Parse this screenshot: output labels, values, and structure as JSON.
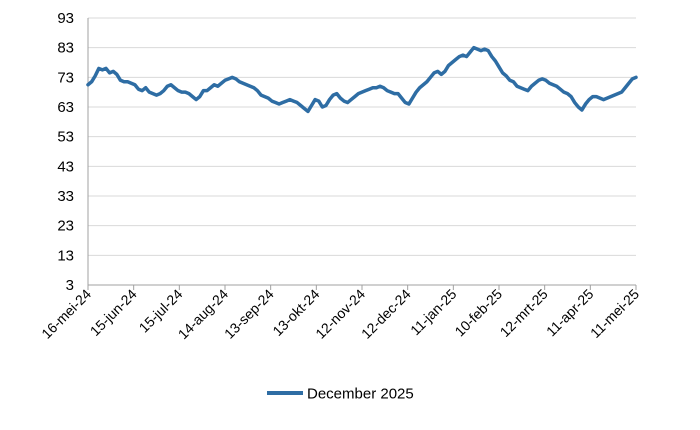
{
  "chart_data": {
    "type": "line",
    "title": "",
    "xlabel": "",
    "ylabel": "",
    "ylim": [
      3,
      93
    ],
    "y_ticks": [
      3,
      13,
      23,
      33,
      43,
      53,
      63,
      73,
      83,
      93
    ],
    "x_ticks": [
      "16-mei-24",
      "15-jun-24",
      "15-jul-24",
      "14-aug-24",
      "13-sep-24",
      "13-okt-24",
      "12-nov-24",
      "12-dec-24",
      "11-jan-25",
      "10-feb-25",
      "12-mrt-25",
      "11-apr-25",
      "11-mei-25"
    ],
    "grid": true,
    "legend_position": "bottom",
    "color": "#2e6da4",
    "series": [
      {
        "name": "December 2025",
        "values": [
          70.5,
          71.5,
          73.5,
          76.0,
          75.5,
          76.0,
          74.5,
          75.0,
          74.0,
          72.0,
          71.5,
          71.5,
          71.0,
          70.5,
          69.0,
          68.5,
          69.5,
          68.0,
          67.5,
          67.0,
          67.5,
          68.5,
          70.0,
          70.5,
          69.5,
          68.5,
          68.0,
          68.0,
          67.5,
          66.5,
          65.5,
          66.5,
          68.5,
          68.5,
          69.5,
          70.5,
          70.0,
          71.0,
          72.0,
          72.5,
          73.0,
          72.5,
          71.5,
          71.0,
          70.5,
          70.0,
          69.5,
          68.5,
          67.0,
          66.5,
          66.0,
          65.0,
          64.5,
          64.0,
          64.5,
          65.0,
          65.5,
          65.0,
          64.5,
          63.5,
          62.5,
          61.5,
          63.5,
          65.5,
          65.0,
          63.0,
          63.5,
          65.5,
          67.0,
          67.5,
          66.0,
          65.0,
          64.5,
          65.5,
          66.5,
          67.5,
          68.0,
          68.5,
          69.0,
          69.5,
          69.5,
          70.0,
          69.5,
          68.5,
          68.0,
          67.5,
          67.5,
          66.0,
          64.5,
          64.0,
          66.0,
          68.0,
          69.5,
          70.5,
          71.5,
          73.0,
          74.5,
          75.0,
          74.0,
          75.0,
          77.0,
          78.0,
          79.0,
          80.0,
          80.5,
          80.0,
          81.5,
          83.0,
          82.5,
          82.0,
          82.5,
          82.0,
          80.0,
          78.5,
          76.5,
          74.5,
          73.5,
          72.0,
          71.5,
          70.0,
          69.5,
          69.0,
          68.5,
          70.0,
          71.0,
          72.0,
          72.5,
          72.0,
          71.0,
          70.5,
          70.0,
          69.0,
          68.0,
          67.5,
          66.5,
          64.5,
          63.0,
          62.0,
          64.0,
          65.5,
          66.5,
          66.5,
          66.0,
          65.5,
          66.0,
          66.5,
          67.0,
          67.5,
          68.0,
          69.5,
          71.0,
          72.5,
          73.0
        ]
      }
    ]
  }
}
